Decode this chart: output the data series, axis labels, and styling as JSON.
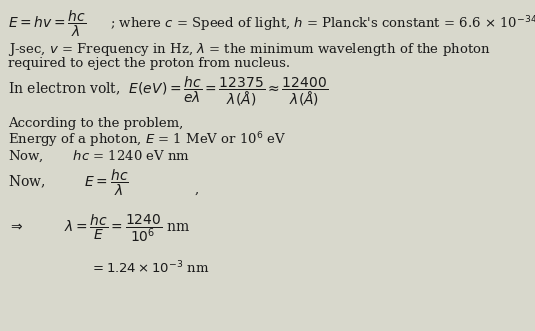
{
  "bg_color": "#d8d8cc",
  "text_color": "#1a1a1a",
  "figsize": [
    5.35,
    3.31
  ],
  "dpi": 100
}
